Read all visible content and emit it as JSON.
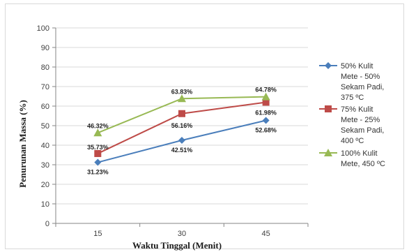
{
  "chart_data": {
    "type": "line",
    "title": "",
    "xlabel": "Waktu Tinggal (Menit)",
    "ylabel": "Penurunan Massa (%)",
    "x": [
      "15",
      "30",
      "45"
    ],
    "ylim": [
      0,
      100
    ],
    "yticks": [
      "0",
      "10",
      "20",
      "30",
      "40",
      "50",
      "60",
      "70",
      "80",
      "90",
      "100"
    ],
    "grid": true,
    "legend_position": "right",
    "series": [
      {
        "name": "50% Kulit Mete - 50% Sekam Padi, 375 ºC",
        "legend_lines": [
          "50% Kulit",
          "Mete - 50%",
          "Sekam Padi,",
          "375 ºC"
        ],
        "color": "#4a7ebb",
        "marker": "diamond",
        "values": [
          31.23,
          42.51,
          52.68
        ],
        "labels": [
          "31.23%",
          "42.51%",
          "52.68%"
        ]
      },
      {
        "name": "75% Kulit Mete - 25% Sekam Padi, 400 ºC",
        "legend_lines": [
          "75% Kulit",
          "Mete - 25%",
          "Sekam Padi,",
          "400 ºC"
        ],
        "color": "#be4b48",
        "marker": "square",
        "values": [
          35.73,
          56.16,
          61.98
        ],
        "labels": [
          "35.73%",
          "56.16%",
          "61.98%"
        ]
      },
      {
        "name": "100% Kulit Mete, 450 ºC",
        "legend_lines": [
          "100% Kulit",
          "Mete, 450 ºC"
        ],
        "color": "#98b954",
        "marker": "triangle",
        "values": [
          46.32,
          63.83,
          64.78
        ],
        "labels": [
          "46.32%",
          "63.83%",
          "64.78%"
        ]
      }
    ]
  }
}
